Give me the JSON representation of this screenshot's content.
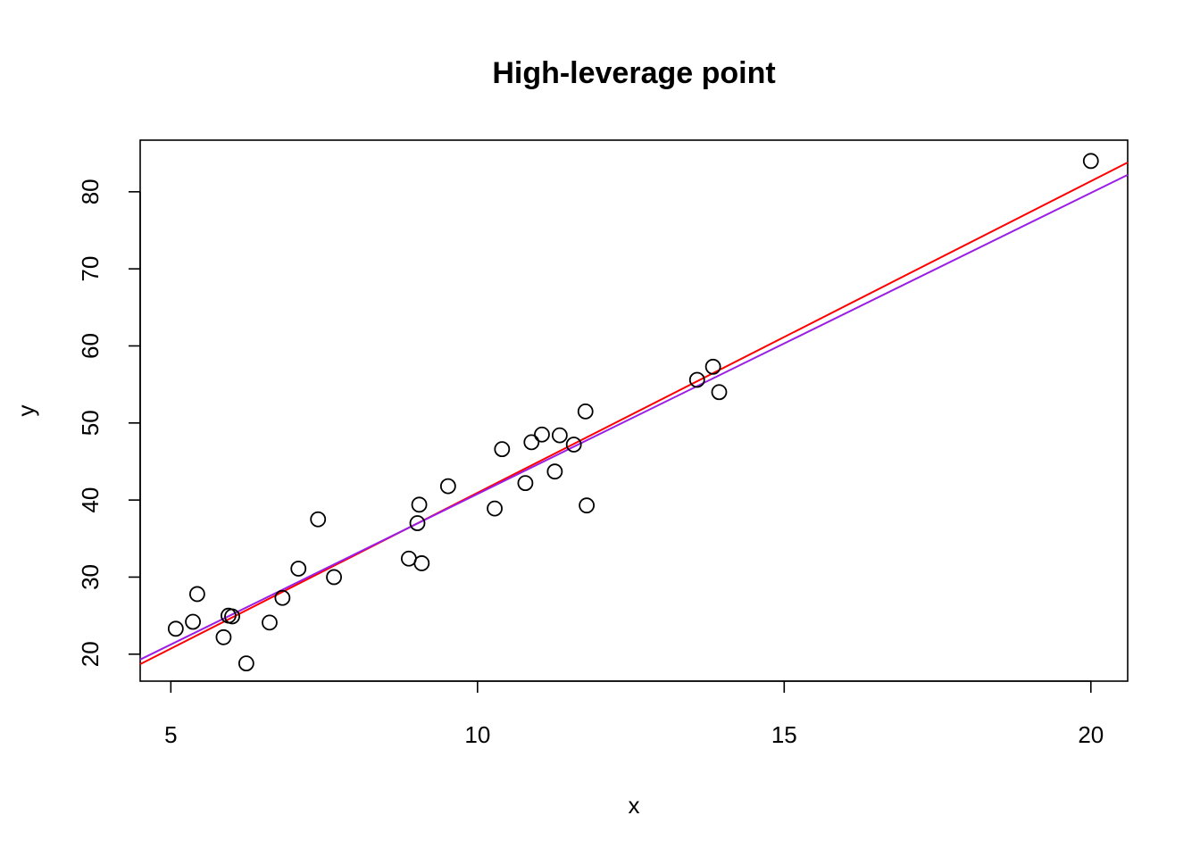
{
  "chart_data": {
    "type": "scatter",
    "title": "High-leverage point",
    "xlabel": "x",
    "ylabel": "y",
    "xlim": [
      4.5,
      20.6
    ],
    "ylim": [
      16.5,
      86.7
    ],
    "xticks": [
      "5",
      "10",
      "15",
      "20"
    ],
    "yticks": [
      "20",
      "30",
      "40",
      "50",
      "60",
      "70",
      "80"
    ],
    "grid": false,
    "legend": "none",
    "points": [
      {
        "x": 5.08,
        "y": 23.3
      },
      {
        "x": 5.36,
        "y": 24.2
      },
      {
        "x": 5.43,
        "y": 27.8
      },
      {
        "x": 5.86,
        "y": 22.2
      },
      {
        "x": 5.94,
        "y": 25.0
      },
      {
        "x": 6.0,
        "y": 24.9
      },
      {
        "x": 6.23,
        "y": 18.8
      },
      {
        "x": 6.61,
        "y": 24.1
      },
      {
        "x": 6.82,
        "y": 27.3
      },
      {
        "x": 7.08,
        "y": 31.1
      },
      {
        "x": 7.4,
        "y": 37.5
      },
      {
        "x": 7.66,
        "y": 30.0
      },
      {
        "x": 8.88,
        "y": 32.4
      },
      {
        "x": 9.02,
        "y": 37.0
      },
      {
        "x": 9.05,
        "y": 39.4
      },
      {
        "x": 9.09,
        "y": 31.8
      },
      {
        "x": 9.52,
        "y": 41.8
      },
      {
        "x": 10.28,
        "y": 38.9
      },
      {
        "x": 10.4,
        "y": 46.6
      },
      {
        "x": 10.78,
        "y": 42.2
      },
      {
        "x": 10.88,
        "y": 47.5
      },
      {
        "x": 11.05,
        "y": 48.5
      },
      {
        "x": 11.26,
        "y": 43.7
      },
      {
        "x": 11.34,
        "y": 48.4
      },
      {
        "x": 11.57,
        "y": 47.2
      },
      {
        "x": 11.76,
        "y": 51.5
      },
      {
        "x": 11.78,
        "y": 39.3
      },
      {
        "x": 13.58,
        "y": 55.6
      },
      {
        "x": 13.84,
        "y": 57.3
      },
      {
        "x": 13.94,
        "y": 54.0
      },
      {
        "x": 20.0,
        "y": 84.0
      }
    ],
    "lines": [
      {
        "color": "#ff0000",
        "x": [
          4.5,
          20.6
        ],
        "y": [
          18.7,
          83.8
        ]
      },
      {
        "color": "#9a1ee6",
        "x": [
          4.5,
          20.6
        ],
        "y": [
          19.3,
          82.2
        ]
      }
    ],
    "colors": {
      "points": "#000000",
      "axes": "#000000"
    }
  }
}
